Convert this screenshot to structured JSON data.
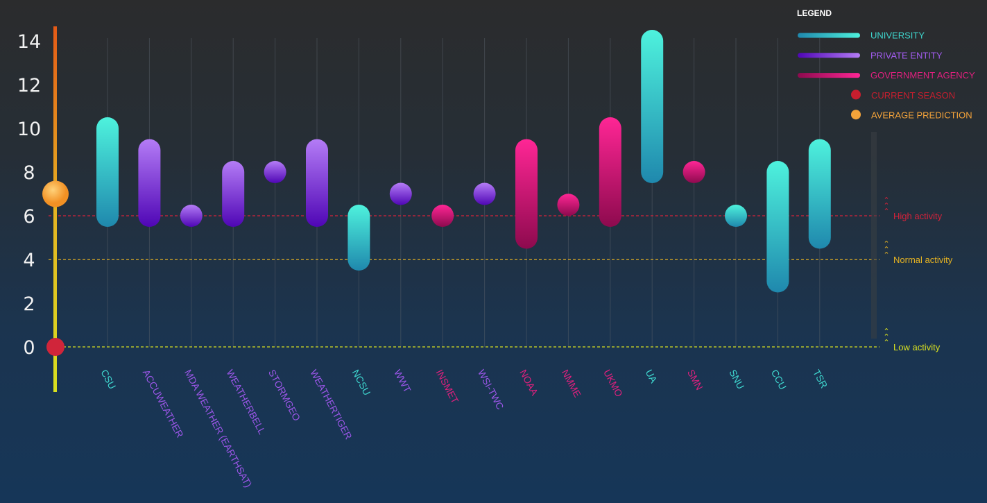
{
  "colors": {
    "university": [
      "#1f88ad",
      "#4ef2dd"
    ],
    "private": [
      "#4f06b5",
      "#b47cf6"
    ],
    "government": [
      "#8d0a4e",
      "#ff2695"
    ],
    "current_season": "#d0253a",
    "average_prediction": "#ffa53c",
    "high": "#d6223a",
    "normal": "#e6b322",
    "low": "#d8e020"
  },
  "legend": {
    "title": "LEGEND",
    "items": [
      {
        "label": "UNIVERSITY",
        "kind": "bar",
        "group": "university",
        "color": "#3fd7cf"
      },
      {
        "label": "PRIVATE ENTITY",
        "kind": "bar",
        "group": "private",
        "color": "#a35cf0"
      },
      {
        "label": "GOVERNMENT AGENCY",
        "kind": "bar",
        "group": "government",
        "color": "#e0207e"
      },
      {
        "label": "CURRENT SEASON",
        "kind": "dot",
        "color": "#c81e2e"
      },
      {
        "label": "AVERAGE PREDICTION",
        "kind": "dot",
        "color": "#f5a43a"
      }
    ]
  },
  "chart_data": {
    "type": "range-bar",
    "ylim": [
      0,
      14
    ],
    "yticks": [
      "0",
      "2",
      "4",
      "6",
      "8",
      "10",
      "12",
      "14"
    ],
    "current_season": 0,
    "average_prediction": 7,
    "thresholds": [
      {
        "label": "High activity",
        "value": 6,
        "key": "high"
      },
      {
        "label": "Normal activity",
        "value": 4,
        "key": "normal"
      },
      {
        "label": "Low activity",
        "value": 0,
        "key": "low"
      }
    ],
    "forecasters": [
      {
        "name": "CSU",
        "group": "university",
        "low": 6,
        "high": 10
      },
      {
        "name": "ACCUWEATHER",
        "group": "private",
        "low": 6,
        "high": 9
      },
      {
        "name": "MDA WEATHER (EARTHSAT)",
        "group": "private",
        "low": 6,
        "high": 6
      },
      {
        "name": "WEATHERBELL",
        "group": "private",
        "low": 6,
        "high": 8
      },
      {
        "name": "STORMGEO",
        "group": "private",
        "low": 8,
        "high": 8
      },
      {
        "name": "WEATHERTIGER",
        "group": "private",
        "low": 6,
        "high": 9
      },
      {
        "name": "NCSU",
        "group": "university",
        "low": 4,
        "high": 6
      },
      {
        "name": "WWT",
        "group": "private",
        "low": 7,
        "high": 7
      },
      {
        "name": "INSMET",
        "group": "government",
        "low": 6,
        "high": 6
      },
      {
        "name": "WSI-TWC",
        "group": "private",
        "low": 7,
        "high": 7
      },
      {
        "name": "NOAA",
        "group": "government",
        "low": 5,
        "high": 9
      },
      {
        "name": "NMME",
        "group": "government",
        "low": 6.5,
        "high": 6.5
      },
      {
        "name": "UKMO",
        "group": "government",
        "low": 6,
        "high": 10
      },
      {
        "name": "UA",
        "group": "university",
        "low": 8,
        "high": 14
      },
      {
        "name": "SMN",
        "group": "government",
        "low": 8,
        "high": 8
      },
      {
        "name": "SNU",
        "group": "university",
        "low": 6,
        "high": 6
      },
      {
        "name": "CCU",
        "group": "university",
        "low": 3,
        "high": 8
      },
      {
        "name": "TSR",
        "group": "university",
        "low": 5,
        "high": 9
      }
    ]
  }
}
